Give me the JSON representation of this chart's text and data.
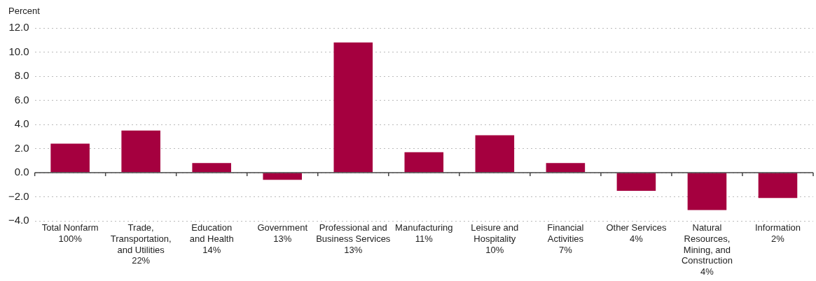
{
  "chart_data": {
    "type": "bar",
    "ylabel": "Percent",
    "categories": [
      "Total Nonfarm\n100%",
      "Trade,\nTransportation,\nand Utilities\n22%",
      "Education\nand Health\n14%",
      "Government\n13%",
      "Professional and\nBusiness Services\n13%",
      "Manufacturing\n11%",
      "Leisure and\nHospitality\n10%",
      "Financial\nActivities\n7%",
      "Other Services\n4%",
      "Natural\nResources,\nMining, and\nConstruction\n4%",
      "Information\n2%"
    ],
    "values": [
      2.4,
      3.5,
      0.8,
      -0.6,
      10.8,
      1.7,
      3.1,
      0.8,
      -1.5,
      -3.1,
      -2.1
    ],
    "color": "#a5003f",
    "ylim": [
      -4,
      12
    ],
    "yticks": [
      {
        "value": -4,
        "label": "−4.0"
      },
      {
        "value": -2,
        "label": "−2.0"
      },
      {
        "value": 0,
        "label": "0.0"
      },
      {
        "value": 2,
        "label": "2.0"
      },
      {
        "value": 4,
        "label": "4.0"
      },
      {
        "value": 6,
        "label": "6.0"
      },
      {
        "value": 8,
        "label": "8.0"
      },
      {
        "value": 10,
        "label": "10.0"
      },
      {
        "value": 12,
        "label": "12.0"
      }
    ],
    "grid": "y"
  }
}
